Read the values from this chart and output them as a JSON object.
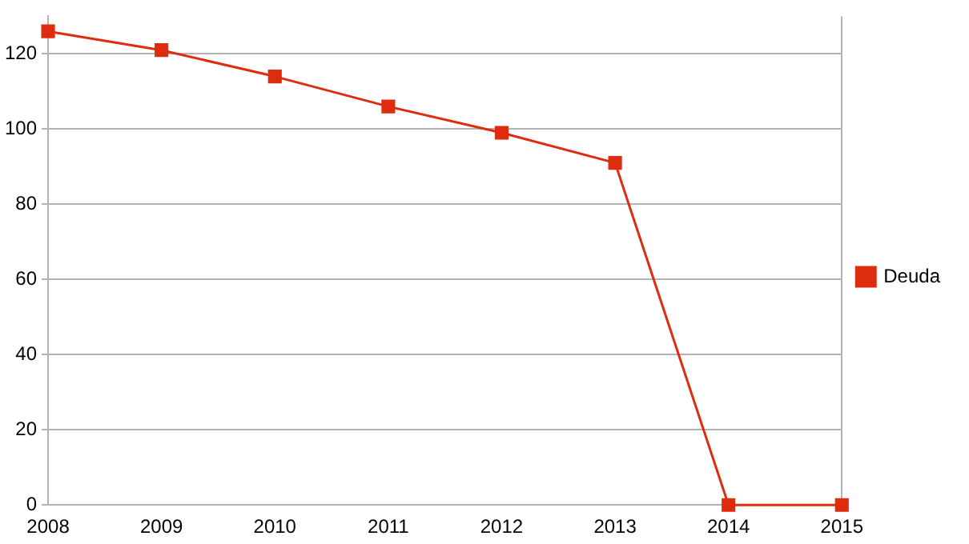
{
  "chart_data": {
    "type": "line",
    "x": [
      2008,
      2009,
      2010,
      2011,
      2012,
      2013,
      2014,
      2015
    ],
    "series": [
      {
        "name": "Deuda",
        "color": "#dd2c0e",
        "values": [
          126,
          121,
          114,
          106,
          99,
          91,
          0,
          0
        ]
      }
    ],
    "xlim": [
      2008,
      2015
    ],
    "xticks": [
      2008,
      2009,
      2010,
      2011,
      2012,
      2013,
      2014,
      2015
    ],
    "ylim": [
      0,
      130
    ],
    "yticks": [
      0,
      20,
      40,
      60,
      80,
      100,
      120
    ],
    "grid": "y",
    "legend": "right",
    "marker": "square",
    "line_style": "solid"
  }
}
